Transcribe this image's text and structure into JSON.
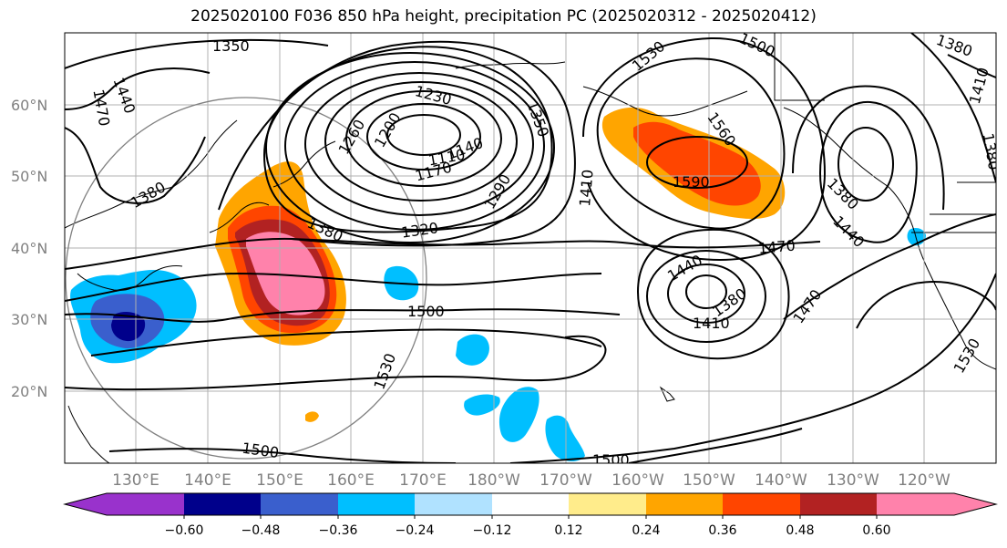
{
  "title": "2025020100 F036 850 hPa height, precipitation PC (2025020312 - 2025020412)",
  "map": {
    "lat_labels": [
      "60°N",
      "50°N",
      "40°N",
      "30°N",
      "20°N"
    ],
    "lon_labels": [
      "130°E",
      "140°E",
      "150°E",
      "160°E",
      "170°E",
      "180°W",
      "170°W",
      "160°W",
      "150°W",
      "140°W",
      "130°W",
      "120°W"
    ],
    "contour_labels": [
      {
        "id": "c1350",
        "text": "1350"
      },
      {
        "id": "c1470w",
        "text": "1470"
      },
      {
        "id": "c1440w",
        "text": "1440"
      },
      {
        "id": "c1380w",
        "text": "1380"
      },
      {
        "id": "c1260",
        "text": "1260"
      },
      {
        "id": "c1200",
        "text": "1200"
      },
      {
        "id": "c1230",
        "text": "1230"
      },
      {
        "id": "c1140",
        "text": "1140"
      },
      {
        "id": "c1170",
        "text": "1170"
      },
      {
        "id": "c1110",
        "text": "1110"
      },
      {
        "id": "c1350c",
        "text": "1350"
      },
      {
        "id": "c1290",
        "text": "1290"
      },
      {
        "id": "c1320",
        "text": "1320"
      },
      {
        "id": "c1380c",
        "text": "1380"
      },
      {
        "id": "c1410c",
        "text": "1410"
      },
      {
        "id": "c1500n",
        "text": "1500"
      },
      {
        "id": "c1530n",
        "text": "1530"
      },
      {
        "id": "c1560",
        "text": "1560"
      },
      {
        "id": "c1590",
        "text": "1590"
      },
      {
        "id": "c1380ne",
        "text": "1380"
      },
      {
        "id": "c1410e",
        "text": "1410"
      },
      {
        "id": "c1380e2",
        "text": "1380"
      },
      {
        "id": "c1380e3",
        "text": "1380"
      },
      {
        "id": "c1440e",
        "text": "1440"
      },
      {
        "id": "c1470c",
        "text": "1470"
      },
      {
        "id": "c1440l",
        "text": "1440"
      },
      {
        "id": "c1380l",
        "text": "1380"
      },
      {
        "id": "c1410l",
        "text": "1410"
      },
      {
        "id": "c1470e",
        "text": "1470"
      },
      {
        "id": "c1500c",
        "text": "1500"
      },
      {
        "id": "c1530s",
        "text": "1530"
      },
      {
        "id": "c1530e",
        "text": "1530"
      },
      {
        "id": "c1500s",
        "text": "1500"
      },
      {
        "id": "c1500se",
        "text": "1500"
      }
    ]
  },
  "colorbar": {
    "colors": [
      "#9932cc",
      "#00008b",
      "#3a5fcd",
      "#00bfff",
      "#b0e2ff",
      "#ffffff",
      "#ffec8b",
      "#ffa500",
      "#ff4500",
      "#b22222",
      "#ff82ab"
    ],
    "tick_labels": [
      "−0.60",
      "−0.48",
      "−0.36",
      "−0.24",
      "−0.12",
      "0.12",
      "0.24",
      "0.36",
      "0.48",
      "0.60"
    ]
  }
}
